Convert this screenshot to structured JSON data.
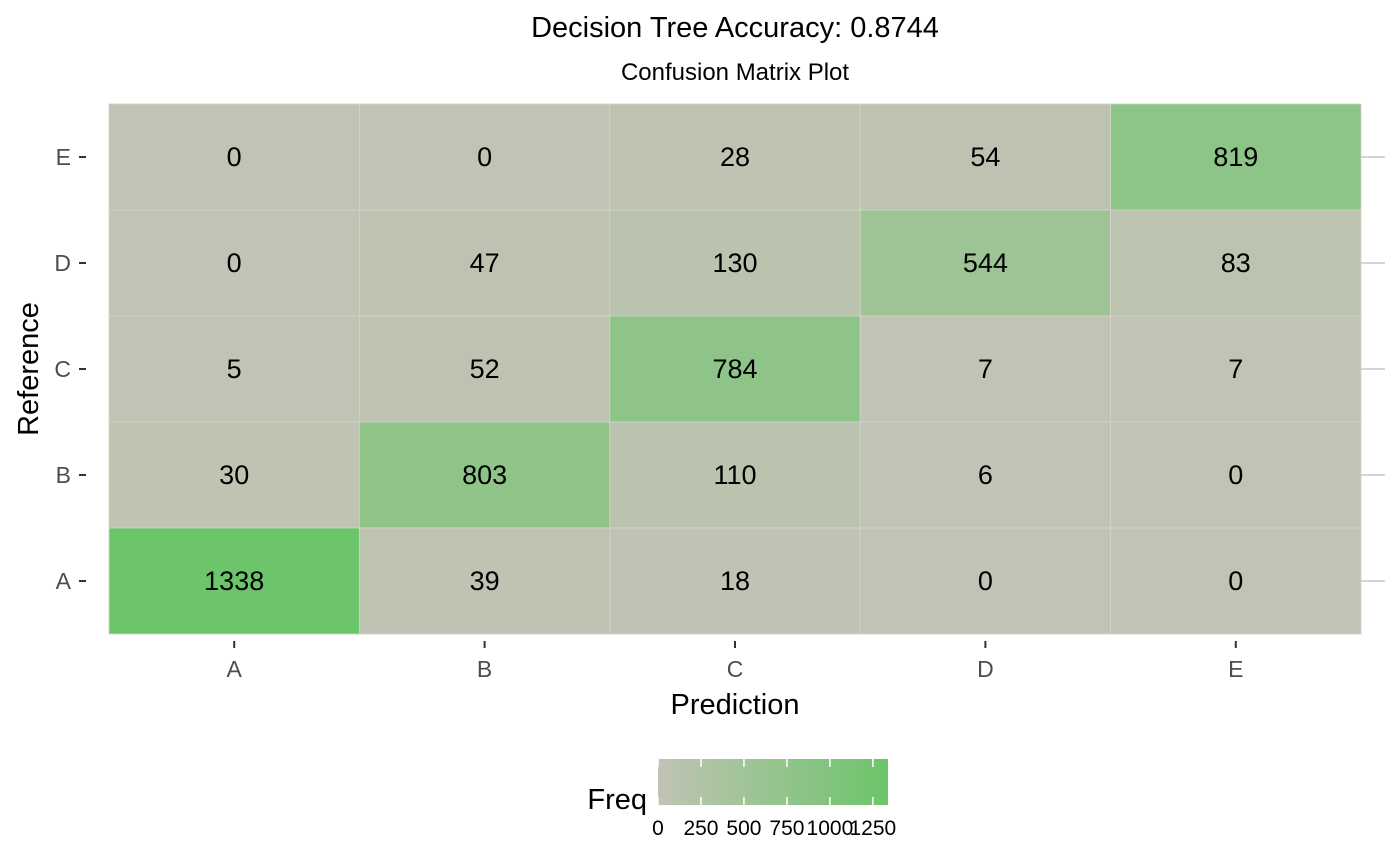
{
  "chart_data": {
    "type": "heatmap",
    "title": "Decision Tree Accuracy: 0.8744",
    "subtitle": "Confusion Matrix Plot",
    "xlabel": "Prediction",
    "ylabel": "Reference",
    "x_categories": [
      "A",
      "B",
      "C",
      "D",
      "E"
    ],
    "y_categories": [
      "A",
      "B",
      "C",
      "D",
      "E"
    ],
    "values": [
      {
        "reference": "E",
        "prediction": "A",
        "freq": 0
      },
      {
        "reference": "E",
        "prediction": "B",
        "freq": 0
      },
      {
        "reference": "E",
        "prediction": "C",
        "freq": 28
      },
      {
        "reference": "E",
        "prediction": "D",
        "freq": 54
      },
      {
        "reference": "E",
        "prediction": "E",
        "freq": 819
      },
      {
        "reference": "D",
        "prediction": "A",
        "freq": 0
      },
      {
        "reference": "D",
        "prediction": "B",
        "freq": 47
      },
      {
        "reference": "D",
        "prediction": "C",
        "freq": 130
      },
      {
        "reference": "D",
        "prediction": "D",
        "freq": 544
      },
      {
        "reference": "D",
        "prediction": "E",
        "freq": 83
      },
      {
        "reference": "C",
        "prediction": "A",
        "freq": 5
      },
      {
        "reference": "C",
        "prediction": "B",
        "freq": 52
      },
      {
        "reference": "C",
        "prediction": "C",
        "freq": 784
      },
      {
        "reference": "C",
        "prediction": "D",
        "freq": 7
      },
      {
        "reference": "C",
        "prediction": "E",
        "freq": 7
      },
      {
        "reference": "B",
        "prediction": "A",
        "freq": 30
      },
      {
        "reference": "B",
        "prediction": "B",
        "freq": 803
      },
      {
        "reference": "B",
        "prediction": "C",
        "freq": 110
      },
      {
        "reference": "B",
        "prediction": "D",
        "freq": 6
      },
      {
        "reference": "B",
        "prediction": "E",
        "freq": 0
      },
      {
        "reference": "A",
        "prediction": "A",
        "freq": 1338
      },
      {
        "reference": "A",
        "prediction": "B",
        "freq": 39
      },
      {
        "reference": "A",
        "prediction": "C",
        "freq": 18
      },
      {
        "reference": "A",
        "prediction": "D",
        "freq": 0
      },
      {
        "reference": "A",
        "prediction": "E",
        "freq": 0
      }
    ],
    "legend": {
      "title": "Freq",
      "ticks": [
        0,
        250,
        500,
        750,
        1000,
        1250
      ],
      "range": [
        0,
        1338
      ],
      "low_color": "#c1c3b4",
      "high_color": "#6cc56a",
      "position": "bottom"
    },
    "grid": true
  }
}
